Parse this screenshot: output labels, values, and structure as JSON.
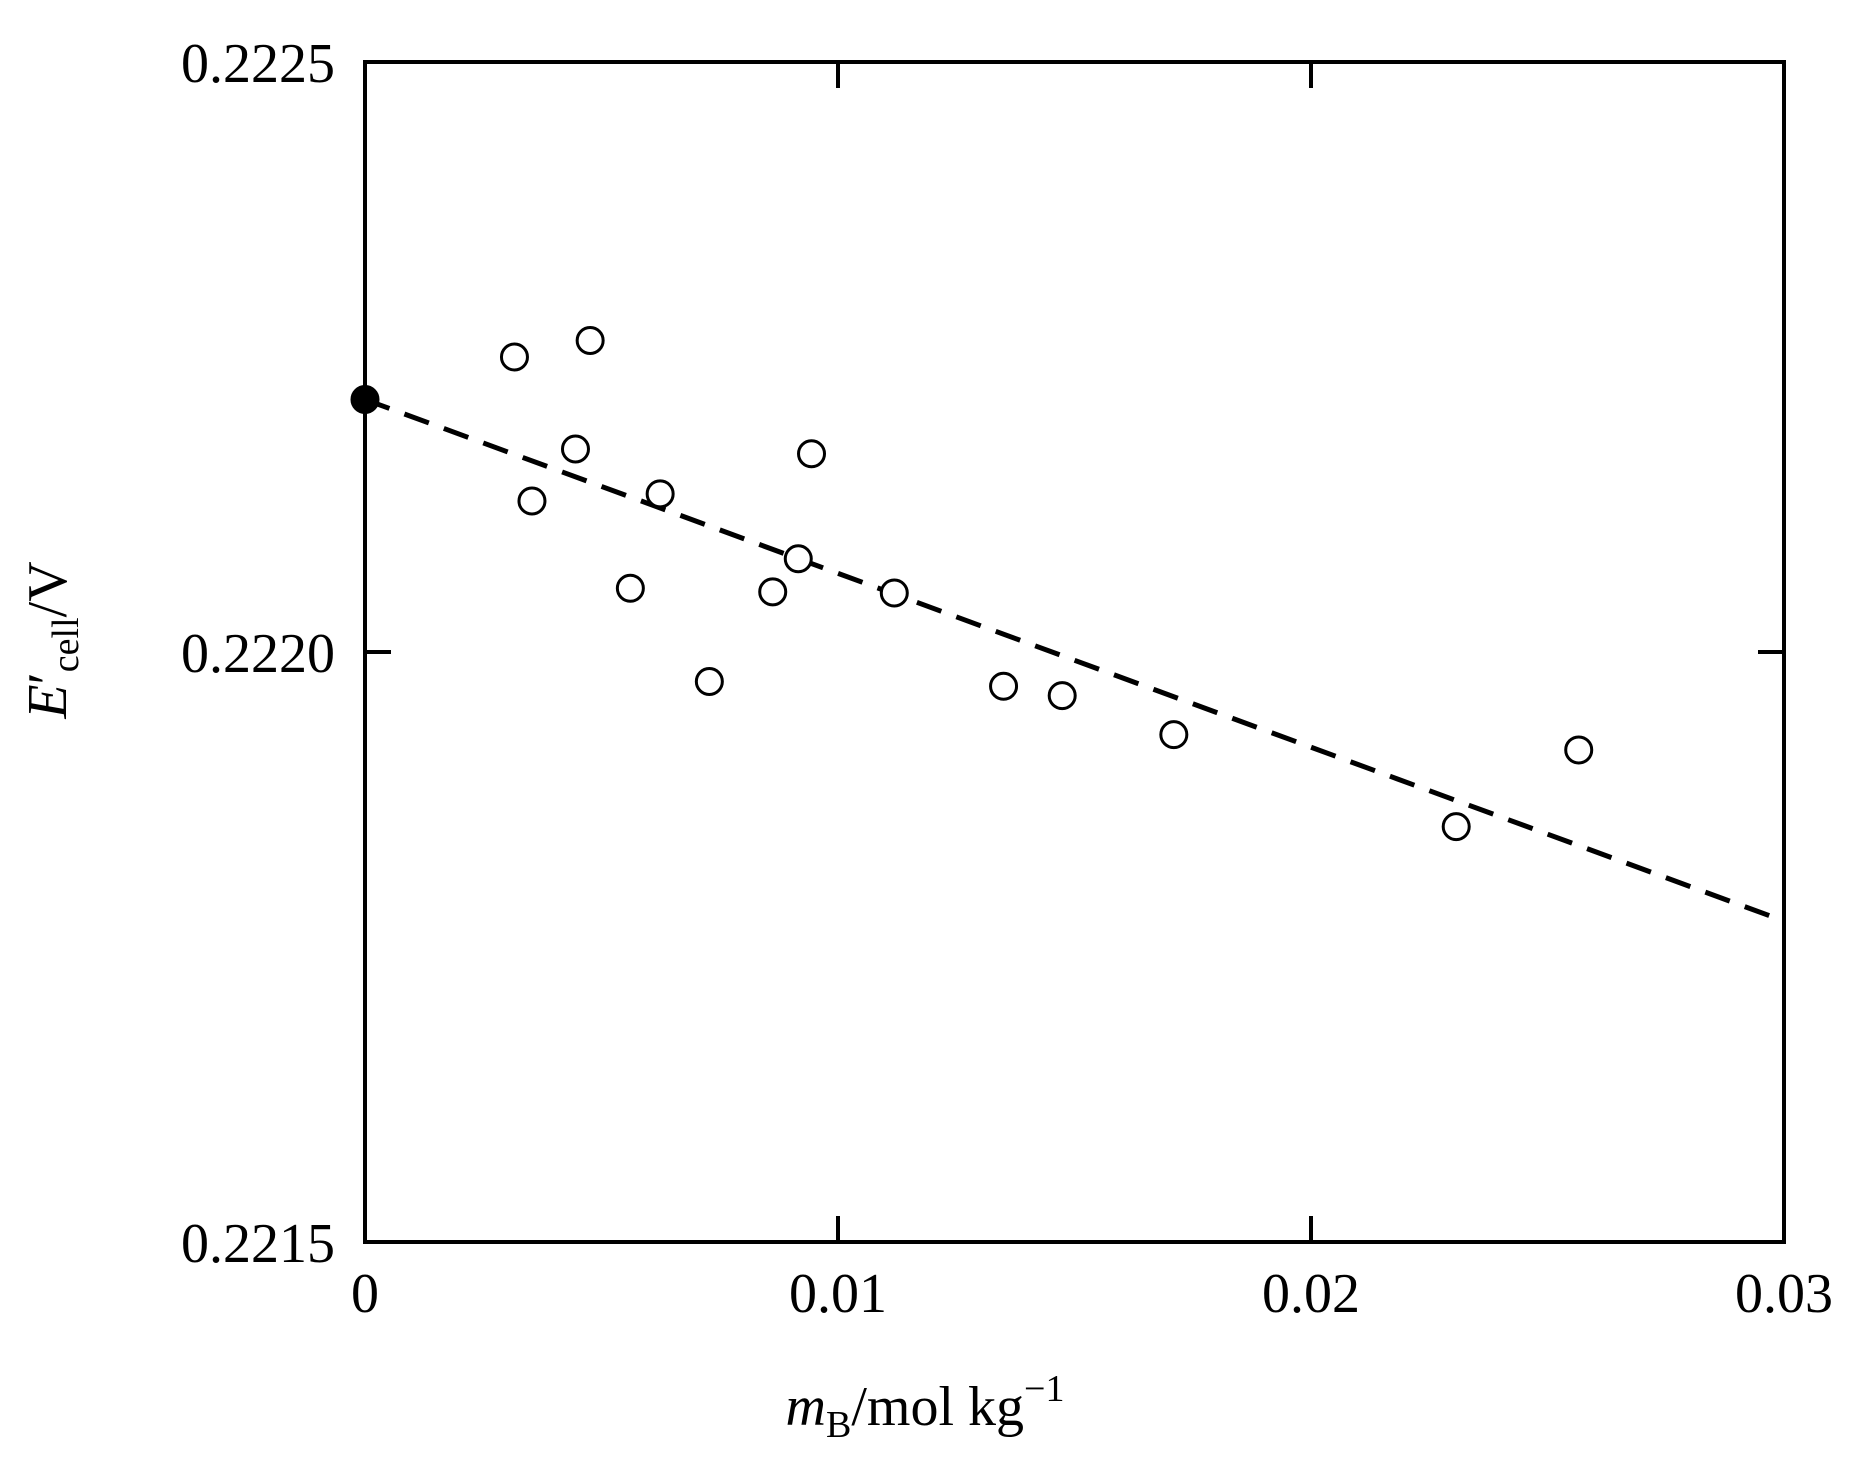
{
  "chart_data": {
    "type": "scatter",
    "title": "",
    "xlabel": {
      "var": "m",
      "sub": "B",
      "rest": "/mol kg",
      "sup": "−1"
    },
    "ylabel": {
      "var": "E",
      "prime": "′",
      "sub": "cell",
      "rest": "/V"
    },
    "xlim": [
      0,
      0.03
    ],
    "ylim": [
      0.2215,
      0.2225
    ],
    "x_ticks": [
      0,
      0.01,
      0.02,
      0.03
    ],
    "x_tick_labels": [
      "0",
      "0.01",
      "0.02",
      "0.03"
    ],
    "y_ticks": [
      0.2215,
      0.222,
      0.2225
    ],
    "y_tick_labels": [
      "0.2215",
      "0.2220",
      "0.2225"
    ],
    "grid": false,
    "legend": "none",
    "series": [
      {
        "marker": "open-circle",
        "x": [
          0.00316,
          0.00353,
          0.00445,
          0.00476,
          0.00561,
          0.00624,
          0.00728,
          0.00862,
          0.00916,
          0.00944,
          0.01119,
          0.0135,
          0.01474,
          0.0171,
          0.02307,
          0.02566
        ],
        "y": [
          0.22225,
          0.222128,
          0.222172,
          0.222264,
          0.222054,
          0.222134,
          0.221975,
          0.222051,
          0.222079,
          0.222168,
          0.22205,
          0.221971,
          0.221963,
          0.22193,
          0.221852,
          0.221917
        ]
      },
      {
        "marker": "filled-circle",
        "x": [
          0
        ],
        "y": [
          0.222214
        ]
      }
    ],
    "fit_line": {
      "style": "dashed",
      "x": [
        0,
        0.03
      ],
      "y": [
        0.222214,
        0.221772
      ]
    }
  }
}
